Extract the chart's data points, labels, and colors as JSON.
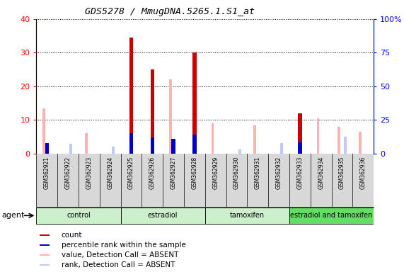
{
  "title": "GDS5278 / MmugDNA.5265.1.S1_at",
  "samples": [
    "GSM362921",
    "GSM362922",
    "GSM362923",
    "GSM362924",
    "GSM362925",
    "GSM362926",
    "GSM362927",
    "GSM362928",
    "GSM362929",
    "GSM362930",
    "GSM362931",
    "GSM362932",
    "GSM362933",
    "GSM362934",
    "GSM362935",
    "GSM362936"
  ],
  "count": [
    0,
    0,
    0,
    0,
    34.5,
    25.0,
    0,
    30.0,
    0,
    0,
    0,
    0,
    12.0,
    0,
    0,
    0
  ],
  "percentile_rank": [
    8,
    0,
    0,
    0,
    15,
    12,
    11,
    14,
    0,
    0,
    0,
    0,
    8.5,
    0,
    0,
    0
  ],
  "value_absent": [
    13.5,
    0,
    6.0,
    0,
    0,
    0,
    22.0,
    0,
    9.0,
    0,
    8.5,
    0,
    0,
    10.5,
    8.0,
    6.5
  ],
  "rank_absent": [
    0,
    3.0,
    0,
    2.0,
    0,
    0,
    0,
    0,
    0,
    1.2,
    0,
    3.2,
    0,
    0,
    5.0,
    0
  ],
  "groups": [
    {
      "label": "control",
      "start": 0,
      "end": 3,
      "color": "#ccf0cc"
    },
    {
      "label": "estradiol",
      "start": 4,
      "end": 7,
      "color": "#ccf0cc"
    },
    {
      "label": "tamoxifen",
      "start": 8,
      "end": 11,
      "color": "#ccf0cc"
    },
    {
      "label": "estradiol and tamoxifen",
      "start": 12,
      "end": 15,
      "color": "#66dd66"
    }
  ],
  "ylim_left": [
    0,
    40
  ],
  "ylim_right": [
    0,
    100
  ],
  "yticks_left": [
    0,
    10,
    20,
    30,
    40
  ],
  "yticks_right": [
    0,
    25,
    50,
    75,
    100
  ],
  "ytick_labels_right": [
    "0",
    "25",
    "50",
    "75",
    "100%"
  ],
  "color_count": "#cc0000",
  "color_rank": "#0000cc",
  "color_value_absent": "#ffb0b0",
  "color_rank_absent": "#c0c8ff",
  "agent_label": "agent"
}
